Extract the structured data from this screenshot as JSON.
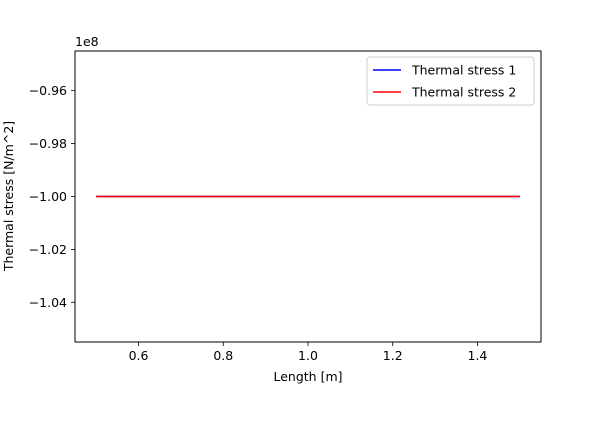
{
  "chart_data": {
    "type": "line",
    "title": "",
    "xlabel": "Length [m]",
    "ylabel": "Thermal stress [N/m^2]",
    "y_offset_label": "1e8",
    "xlim": [
      0.45,
      1.55
    ],
    "ylim": [
      -1.055,
      -0.945
    ],
    "x_ticks": [
      {
        "value": 0.6,
        "label": "0.6"
      },
      {
        "value": 0.8,
        "label": "0.8"
      },
      {
        "value": 1.0,
        "label": "1.0"
      },
      {
        "value": 1.2,
        "label": "1.2"
      },
      {
        "value": 1.4,
        "label": "1.4"
      }
    ],
    "y_ticks": [
      {
        "value": -0.96,
        "label": "−0.96"
      },
      {
        "value": -0.98,
        "label": "−0.98"
      },
      {
        "value": -1.0,
        "label": "−1.00"
      },
      {
        "value": -1.02,
        "label": "−1.02"
      },
      {
        "value": -1.04,
        "label": "−1.04"
      }
    ],
    "grid": false,
    "legend_position": "top-right",
    "series": [
      {
        "name": "Thermal stress 1",
        "color": "#0000ff",
        "x": [
          0.5,
          1.5
        ],
        "y": [
          -1.0,
          -1.0
        ]
      },
      {
        "name": "Thermal stress 2",
        "color": "#ff0000",
        "x": [
          0.5,
          1.5
        ],
        "y": [
          -1.0,
          -1.0
        ]
      }
    ]
  }
}
